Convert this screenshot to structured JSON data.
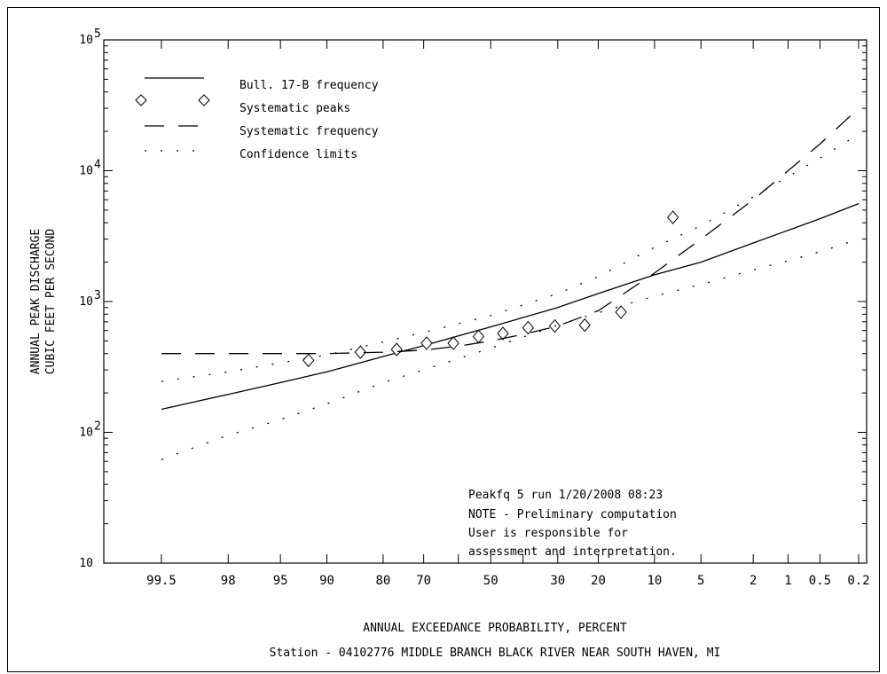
{
  "chart_data": {
    "type": "line",
    "title": "",
    "xlabel": "ANNUAL EXCEEDANCE PROBABILITY, PERCENT",
    "ylabel_line1": "ANNUAL PEAK DISCHARGE",
    "ylabel_line2": "CUBIC FEET PER SECOND",
    "x_scale": "normal-probability",
    "x_direction": "decreasing",
    "y_scale": "log",
    "ylim": [
      10,
      100000
    ],
    "x_ticks": [
      99.5,
      98,
      95,
      90,
      80,
      70,
      50,
      30,
      20,
      10,
      5,
      2,
      1,
      0.5,
      0.2
    ],
    "x_tick_labels": [
      "99.5",
      "98",
      "95",
      "90",
      "80",
      "70",
      "50",
      "30",
      "20",
      "10",
      "5",
      "2",
      "1",
      "0.5",
      "0.2"
    ],
    "y_ticks": [
      {
        "value": 10,
        "base": "10",
        "exp": ""
      },
      {
        "value": 100,
        "base": "10",
        "exp": "2"
      },
      {
        "value": 1000,
        "base": "10",
        "exp": "3"
      },
      {
        "value": 10000,
        "base": "10",
        "exp": "4"
      },
      {
        "value": 100000,
        "base": "10",
        "exp": "5"
      }
    ],
    "legend_position": "top-left",
    "legend": [
      {
        "label": "Bull. 17-B frequency",
        "style": "solid"
      },
      {
        "label": "Systematic peaks",
        "style": "diamond"
      },
      {
        "label": "Systematic frequency",
        "style": "dashed"
      },
      {
        "label": "Confidence limits",
        "style": "dotted"
      }
    ],
    "series": [
      {
        "name": "Bull. 17-B frequency",
        "style": "solid",
        "x": [
          99.5,
          98,
          95,
          90,
          80,
          70,
          50,
          30,
          20,
          10,
          5,
          2,
          1,
          0.5,
          0.2
        ],
        "y": [
          150,
          195,
          240,
          290,
          380,
          460,
          640,
          900,
          1150,
          1600,
          2000,
          2800,
          3500,
          4300,
          5600
        ]
      },
      {
        "name": "Systematic peaks",
        "style": "diamond",
        "x": [
          92.3,
          84.6,
          76.9,
          69.2,
          61.5,
          53.8,
          46.2,
          38.5,
          30.8,
          23.1,
          15.4,
          7.7
        ],
        "y": [
          355,
          410,
          430,
          480,
          480,
          540,
          570,
          630,
          650,
          660,
          830,
          4400
        ]
      },
      {
        "name": "Systematic frequency",
        "style": "dashed",
        "x": [
          99.5,
          95,
          90,
          80,
          70,
          60,
          50,
          40,
          30,
          20,
          10,
          5,
          2,
          1,
          0.5,
          0.2
        ],
        "y": [
          400,
          400,
          400,
          410,
          425,
          455,
          500,
          560,
          650,
          850,
          1650,
          3000,
          6000,
          10000,
          16000,
          30000
        ]
      },
      {
        "name": "Confidence limits",
        "style": "dotted",
        "x": [
          99.5,
          98,
          95,
          90,
          80,
          70,
          50,
          30,
          20,
          10,
          5,
          2,
          1,
          0.5,
          0.2
        ],
        "y": [
          245,
          290,
          340,
          390,
          490,
          580,
          780,
          1150,
          1550,
          2600,
          3800,
          6300,
          9000,
          12500,
          19000
        ]
      },
      {
        "name": "Confidence limits",
        "style": "dotted",
        "x": [
          99.5,
          98,
          95,
          90,
          80,
          70,
          50,
          30,
          20,
          10,
          5,
          2,
          1,
          0.5,
          0.2
        ],
        "y": [
          62,
          95,
          125,
          165,
          240,
          300,
          440,
          660,
          820,
          1100,
          1350,
          1750,
          2050,
          2400,
          3000
        ]
      }
    ],
    "annotation_lines": [
      "Peakfq 5 run 1/20/2008 08:23",
      "NOTE - Preliminary computation",
      "User is responsible for",
      "assessment and interpretation."
    ],
    "station_caption": "Station - 04102776  MIDDLE BRANCH BLACK RIVER NEAR SOUTH HAVEN, MI"
  }
}
